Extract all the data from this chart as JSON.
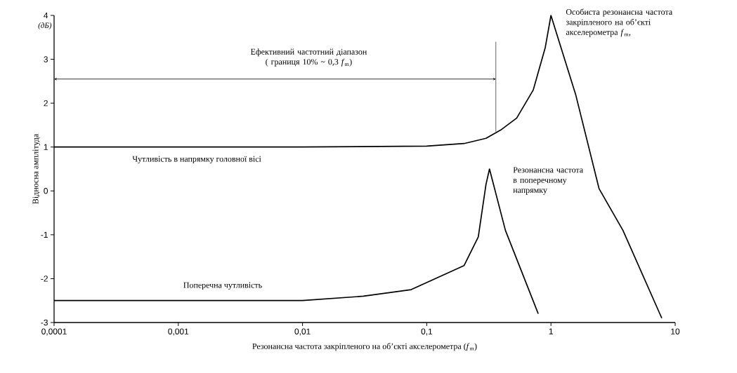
{
  "chart_data": {
    "type": "line",
    "xlabel": "Резонансна частота закріпленого на об’єкті акселерометра   (*f*$_{m}$)",
    "ylabel": "Відносна амплітуда",
    "log": "x",
    "xlim": [
      0.0001,
      10
    ],
    "ylim": [
      -3,
      4
    ],
    "xticks": [
      {
        "value": 0.0001,
        "label": "0,0001"
      },
      {
        "value": 0.001,
        "label": "0,001"
      },
      {
        "value": 0.01,
        "label": "0,01"
      },
      {
        "value": 0.1,
        "label": "0,1"
      },
      1,
      10
    ],
    "yticks": [
      -3,
      -2,
      -1,
      0,
      1,
      2,
      3,
      4
    ],
    "grid": false,
    "marker": "none",
    "line_style": "solid",
    "series": [
      {
        "color": "#000000",
        "x": [
          0.0001,
          0.001,
          0.01,
          0.1,
          0.2,
          0.3,
          0.4,
          0.53,
          0.72,
          0.9,
          1,
          1.58,
          2.44,
          3.8,
          7.8
        ],
        "values": [
          1,
          1,
          1,
          1.02,
          1.08,
          1.2,
          1.4,
          1.66,
          2.3,
          3.27,
          4,
          2.2,
          0.05,
          -0.9,
          -2.9
        ]
      },
      {
        "color": "#000000",
        "x": [
          0.0001,
          0.001,
          0.01,
          0.031,
          0.075,
          0.2,
          0.26,
          0.3,
          0.32,
          0.43,
          0.79
        ],
        "values": [
          -2.5,
          -2.5,
          -2.5,
          -2.4,
          -2.25,
          -1.7,
          -1.05,
          0.15,
          0.5,
          -0.9,
          -2.8
        ]
      }
    ],
    "annotations": [
      "Ефективний частотний діапазон ( границя 10% ~ 0,3 *f*$_{m}$)",
      "Чутливість в напрямку головної вісі",
      "Поперечна чутливість",
      "Резонансна частота в поперечному напрямку",
      "Особиста резонансна частота закріпленого на об’єкті акселерометра *f*$_{m}$,",
      "(дБ)"
    ]
  }
}
